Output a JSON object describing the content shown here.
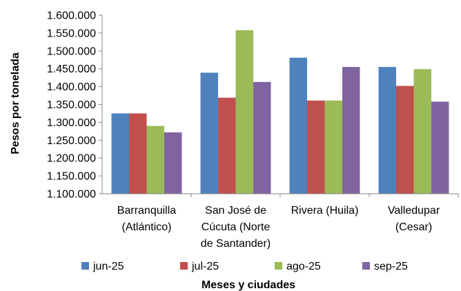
{
  "chart_data": {
    "type": "bar",
    "xlabel": "Meses y ciudades",
    "ylabel": "Pesos por tonelada",
    "ylim": [
      1100000,
      1600000
    ],
    "yticks": [
      1100000,
      1150000,
      1200000,
      1250000,
      1300000,
      1350000,
      1400000,
      1450000,
      1500000,
      1550000,
      1600000
    ],
    "ytick_labels": [
      "1.100.000",
      "1.150.000",
      "1.200.000",
      "1.250.000",
      "1.300.000",
      "1.350.000",
      "1.400.000",
      "1.450.000",
      "1.500.000",
      "1.550.000",
      "1.600.000"
    ],
    "grid": false,
    "legend_position": "bottom",
    "categories": [
      [
        "Barranquilla",
        "(Atlántico)"
      ],
      [
        "San José de",
        "Cúcuta (Norte",
        "de Santander)"
      ],
      [
        "Rivera (Huila)"
      ],
      [
        "Valledupar",
        "(Cesar)"
      ]
    ],
    "series": [
      {
        "name": "jun-25",
        "color": "#4f81bd",
        "values": [
          1325000,
          1439000,
          1481000,
          1455000
        ]
      },
      {
        "name": "jul-25",
        "color": "#c0504d",
        "values": [
          1325000,
          1369000,
          1361000,
          1402000
        ]
      },
      {
        "name": "ago-25",
        "color": "#9bbb59",
        "values": [
          1290000,
          1558000,
          1361000,
          1449000
        ]
      },
      {
        "name": "sep-25",
        "color": "#8064a2",
        "values": [
          1272000,
          1413000,
          1455000,
          1358000
        ]
      }
    ]
  }
}
